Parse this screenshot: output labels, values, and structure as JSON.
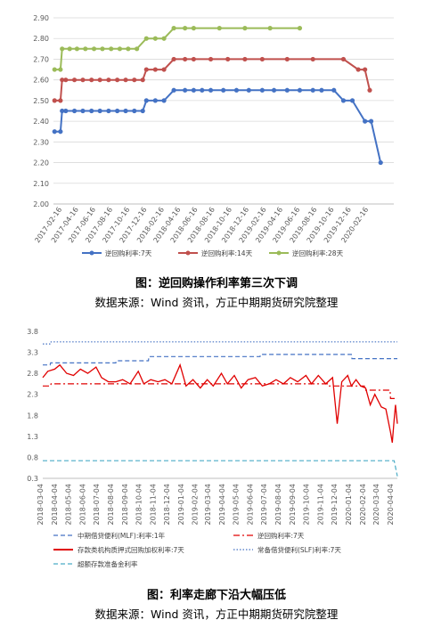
{
  "colors": {
    "rate7": "#4472c4",
    "rate14": "#c0504d",
    "rate28": "#9bbb59",
    "mlf": "#4472c4",
    "dr007": "#e00000",
    "rr7": "#e00000",
    "slf": "#4472c4",
    "excess": "#4bacc6",
    "axis": "#bfbfbf"
  },
  "chart_data": [
    {
      "type": "line",
      "x_type": "date",
      "yticks": [
        "2.00",
        "2.10",
        "2.20",
        "2.30",
        "2.40",
        "2.50",
        "2.60",
        "2.70",
        "2.80",
        "2.90"
      ],
      "ylim": [
        2.0,
        2.9
      ],
      "xticks": [
        "2017-02-16",
        "2017-04-16",
        "2017-06-16",
        "2017-08-16",
        "2017-10-16",
        "2017-12-16",
        "2018-02-16",
        "2018-04-16",
        "2018-06-16",
        "2018-08-16",
        "2018-10-16",
        "2018-12-16",
        "2019-02-16",
        "2019-04-16",
        "2019-06-16",
        "2019-08-16",
        "2019-10-16",
        "2019-12-16",
        "2020-02-16"
      ],
      "xlim": [
        "2017-01-16",
        "2020-05-16"
      ],
      "grid": "horizontal",
      "legend_position": "bottom",
      "caption": "图：逆回购操作利率第三次下调",
      "source": "数据来源：Wind 资讯，方正中期期货研究院整理",
      "series": [
        {
          "name": "逆回购利率:7天",
          "color_key": "rate7",
          "points": [
            [
              "2017-01-20",
              2.35
            ],
            [
              "2017-02-10",
              2.35
            ],
            [
              "2017-02-16",
              2.45
            ],
            [
              "2017-03-01",
              2.45
            ],
            [
              "2017-04-01",
              2.45
            ],
            [
              "2017-05-01",
              2.45
            ],
            [
              "2017-06-01",
              2.45
            ],
            [
              "2017-07-01",
              2.45
            ],
            [
              "2017-08-01",
              2.45
            ],
            [
              "2017-09-01",
              2.45
            ],
            [
              "2017-10-01",
              2.45
            ],
            [
              "2017-11-01",
              2.45
            ],
            [
              "2017-12-01",
              2.45
            ],
            [
              "2017-12-14",
              2.5
            ],
            [
              "2018-01-15",
              2.5
            ],
            [
              "2018-02-15",
              2.5
            ],
            [
              "2018-03-22",
              2.55
            ],
            [
              "2018-05-01",
              2.55
            ],
            [
              "2018-06-01",
              2.55
            ],
            [
              "2018-07-01",
              2.55
            ],
            [
              "2018-08-01",
              2.55
            ],
            [
              "2018-09-15",
              2.55
            ],
            [
              "2018-11-01",
              2.55
            ],
            [
              "2018-12-15",
              2.55
            ],
            [
              "2019-02-01",
              2.55
            ],
            [
              "2019-03-15",
              2.55
            ],
            [
              "2019-05-01",
              2.55
            ],
            [
              "2019-06-15",
              2.55
            ],
            [
              "2019-08-01",
              2.55
            ],
            [
              "2019-09-01",
              2.55
            ],
            [
              "2019-10-15",
              2.55
            ],
            [
              "2019-11-18",
              2.5
            ],
            [
              "2019-12-20",
              2.5
            ],
            [
              "2020-02-03",
              2.4
            ],
            [
              "2020-02-25",
              2.4
            ],
            [
              "2020-03-30",
              2.2
            ]
          ]
        },
        {
          "name": "逆回购利率:14天",
          "color_key": "rate14",
          "points": [
            [
              "2017-01-20",
              2.5
            ],
            [
              "2017-02-10",
              2.5
            ],
            [
              "2017-02-16",
              2.6
            ],
            [
              "2017-03-01",
              2.6
            ],
            [
              "2017-04-01",
              2.6
            ],
            [
              "2017-05-01",
              2.6
            ],
            [
              "2017-06-01",
              2.6
            ],
            [
              "2017-07-01",
              2.6
            ],
            [
              "2017-08-01",
              2.6
            ],
            [
              "2017-09-01",
              2.6
            ],
            [
              "2017-10-01",
              2.6
            ],
            [
              "2017-11-01",
              2.6
            ],
            [
              "2017-12-01",
              2.6
            ],
            [
              "2017-12-14",
              2.65
            ],
            [
              "2018-01-15",
              2.65
            ],
            [
              "2018-02-15",
              2.65
            ],
            [
              "2018-03-22",
              2.7
            ],
            [
              "2018-05-01",
              2.7
            ],
            [
              "2018-06-01",
              2.7
            ],
            [
              "2018-08-01",
              2.7
            ],
            [
              "2018-10-01",
              2.7
            ],
            [
              "2018-12-01",
              2.7
            ],
            [
              "2019-02-01",
              2.7
            ],
            [
              "2019-05-01",
              2.7
            ],
            [
              "2019-08-01",
              2.7
            ],
            [
              "2019-11-18",
              2.7
            ],
            [
              "2020-01-10",
              2.65
            ],
            [
              "2020-02-03",
              2.65
            ],
            [
              "2020-02-20",
              2.55
            ]
          ]
        },
        {
          "name": "逆回购利率:28天",
          "color_key": "rate28",
          "points": [
            [
              "2017-01-20",
              2.65
            ],
            [
              "2017-02-10",
              2.65
            ],
            [
              "2017-02-16",
              2.75
            ],
            [
              "2017-03-15",
              2.75
            ],
            [
              "2017-04-10",
              2.75
            ],
            [
              "2017-05-10",
              2.75
            ],
            [
              "2017-06-10",
              2.75
            ],
            [
              "2017-07-10",
              2.75
            ],
            [
              "2017-08-10",
              2.75
            ],
            [
              "2017-09-10",
              2.75
            ],
            [
              "2017-10-10",
              2.75
            ],
            [
              "2017-11-10",
              2.75
            ],
            [
              "2017-12-14",
              2.8
            ],
            [
              "2018-01-15",
              2.8
            ],
            [
              "2018-02-15",
              2.8
            ],
            [
              "2018-03-22",
              2.85
            ],
            [
              "2018-05-01",
              2.85
            ],
            [
              "2018-06-01",
              2.85
            ],
            [
              "2018-09-01",
              2.85
            ],
            [
              "2018-12-01",
              2.85
            ],
            [
              "2019-03-01",
              2.85
            ],
            [
              "2019-06-15",
              2.85
            ]
          ]
        }
      ]
    },
    {
      "type": "line",
      "x_type": "date",
      "yticks": [
        "0.3",
        "0.8",
        "1.3",
        "1.8",
        "2.3",
        "2.8",
        "3.3",
        "3.8"
      ],
      "ylim": [
        0.3,
        3.8
      ],
      "xticks": [
        "2018-03-04",
        "2018-04-04",
        "2018-05-04",
        "2018-06-04",
        "2018-07-04",
        "2018-08-04",
        "2018-09-04",
        "2018-10-04",
        "2018-11-04",
        "2018-12-04",
        "2019-01-04",
        "2019-02-04",
        "2019-03-04",
        "2019-04-04",
        "2019-05-04",
        "2019-06-04",
        "2019-07-04",
        "2019-08-04",
        "2019-09-04",
        "2019-10-04",
        "2019-11-04",
        "2019-12-04",
        "2020-01-04",
        "2020-02-04",
        "2020-03-04",
        "2020-04-04"
      ],
      "xlim": [
        "2018-03-04",
        "2020-04-14"
      ],
      "grid": "none",
      "legend_position": "bottom",
      "caption": "图：利率走廊下沿大幅压低",
      "source": "数据来源：Wind 资讯，方正中期期货研究院整理",
      "series": [
        {
          "name": "中期借贷便利(MLF):利率:1年",
          "color_key": "mlf",
          "style": "dashed",
          "points": [
            [
              "2018-03-04",
              3.0
            ],
            [
              "2018-03-20",
              3.0
            ],
            [
              "2018-03-21",
              3.05
            ],
            [
              "2018-08-10",
              3.05
            ],
            [
              "2018-08-11",
              3.1
            ],
            [
              "2018-10-20",
              3.1
            ],
            [
              "2018-10-21",
              3.2
            ],
            [
              "2019-06-20",
              3.2
            ],
            [
              "2019-06-21",
              3.25
            ],
            [
              "2020-01-05",
              3.25
            ],
            [
              "2020-01-06",
              3.15
            ],
            [
              "2020-04-14",
              3.15
            ]
          ]
        },
        {
          "name": "逆回购利率:7天",
          "color_key": "rr7",
          "style": "dashdot",
          "points": [
            [
              "2018-03-04",
              2.5
            ],
            [
              "2018-03-21",
              2.5
            ],
            [
              "2018-03-22",
              2.55
            ],
            [
              "2019-11-17",
              2.55
            ],
            [
              "2019-11-18",
              2.5
            ],
            [
              "2020-02-02",
              2.5
            ],
            [
              "2020-02-03",
              2.4
            ],
            [
              "2020-03-29",
              2.4
            ],
            [
              "2020-03-30",
              2.2
            ],
            [
              "2020-04-14",
              2.2
            ]
          ]
        },
        {
          "name": "存款类机构质押式回购加权利率:7天",
          "color_key": "dr007",
          "style": "solid",
          "points": [
            [
              "2018-03-04",
              2.7
            ],
            [
              "2018-03-15",
              2.85
            ],
            [
              "2018-03-30",
              2.9
            ],
            [
              "2018-04-10",
              3.0
            ],
            [
              "2018-04-25",
              2.8
            ],
            [
              "2018-05-10",
              2.75
            ],
            [
              "2018-05-25",
              2.9
            ],
            [
              "2018-06-10",
              2.8
            ],
            [
              "2018-06-28",
              2.95
            ],
            [
              "2018-07-10",
              2.7
            ],
            [
              "2018-07-25",
              2.6
            ],
            [
              "2018-08-10",
              2.6
            ],
            [
              "2018-08-25",
              2.65
            ],
            [
              "2018-09-10",
              2.55
            ],
            [
              "2018-09-28",
              2.85
            ],
            [
              "2018-10-10",
              2.55
            ],
            [
              "2018-10-25",
              2.65
            ],
            [
              "2018-11-10",
              2.6
            ],
            [
              "2018-11-25",
              2.65
            ],
            [
              "2018-12-10",
              2.55
            ],
            [
              "2018-12-28",
              3.0
            ],
            [
              "2019-01-10",
              2.5
            ],
            [
              "2019-01-25",
              2.65
            ],
            [
              "2019-02-10",
              2.45
            ],
            [
              "2019-02-25",
              2.65
            ],
            [
              "2019-03-10",
              2.5
            ],
            [
              "2019-03-28",
              2.8
            ],
            [
              "2019-04-10",
              2.55
            ],
            [
              "2019-04-25",
              2.75
            ],
            [
              "2019-05-10",
              2.45
            ],
            [
              "2019-05-25",
              2.65
            ],
            [
              "2019-06-10",
              2.7
            ],
            [
              "2019-06-25",
              2.5
            ],
            [
              "2019-07-10",
              2.55
            ],
            [
              "2019-07-25",
              2.65
            ],
            [
              "2019-08-10",
              2.55
            ],
            [
              "2019-08-25",
              2.7
            ],
            [
              "2019-09-10",
              2.6
            ],
            [
              "2019-09-28",
              2.75
            ],
            [
              "2019-10-10",
              2.55
            ],
            [
              "2019-10-25",
              2.75
            ],
            [
              "2019-11-10",
              2.55
            ],
            [
              "2019-11-25",
              2.7
            ],
            [
              "2019-12-05",
              1.6
            ],
            [
              "2019-12-15",
              2.6
            ],
            [
              "2019-12-28",
              2.75
            ],
            [
              "2020-01-05",
              2.5
            ],
            [
              "2020-01-15",
              2.65
            ],
            [
              "2020-01-25",
              2.5
            ],
            [
              "2020-02-05",
              2.45
            ],
            [
              "2020-02-15",
              2.05
            ],
            [
              "2020-02-25",
              2.3
            ],
            [
              "2020-03-10",
              2.0
            ],
            [
              "2020-03-20",
              1.95
            ],
            [
              "2020-03-30",
              1.4
            ],
            [
              "2020-04-03",
              1.15
            ],
            [
              "2020-04-07",
              1.7
            ],
            [
              "2020-04-10",
              2.05
            ],
            [
              "2020-04-14",
              1.6
            ]
          ]
        },
        {
          "name": "常备借贷便利(SLF)利率:7天",
          "color_key": "slf",
          "style": "dotted",
          "points": [
            [
              "2018-03-04",
              3.5
            ],
            [
              "2018-03-21",
              3.5
            ],
            [
              "2018-03-22",
              3.55
            ],
            [
              "2020-04-14",
              3.55
            ]
          ]
        },
        {
          "name": "超额存款准备金利率",
          "color_key": "excess",
          "style": "dashed",
          "points": [
            [
              "2018-03-04",
              0.72
            ],
            [
              "2020-04-07",
              0.72
            ],
            [
              "2020-04-14",
              0.35
            ]
          ]
        }
      ]
    }
  ]
}
